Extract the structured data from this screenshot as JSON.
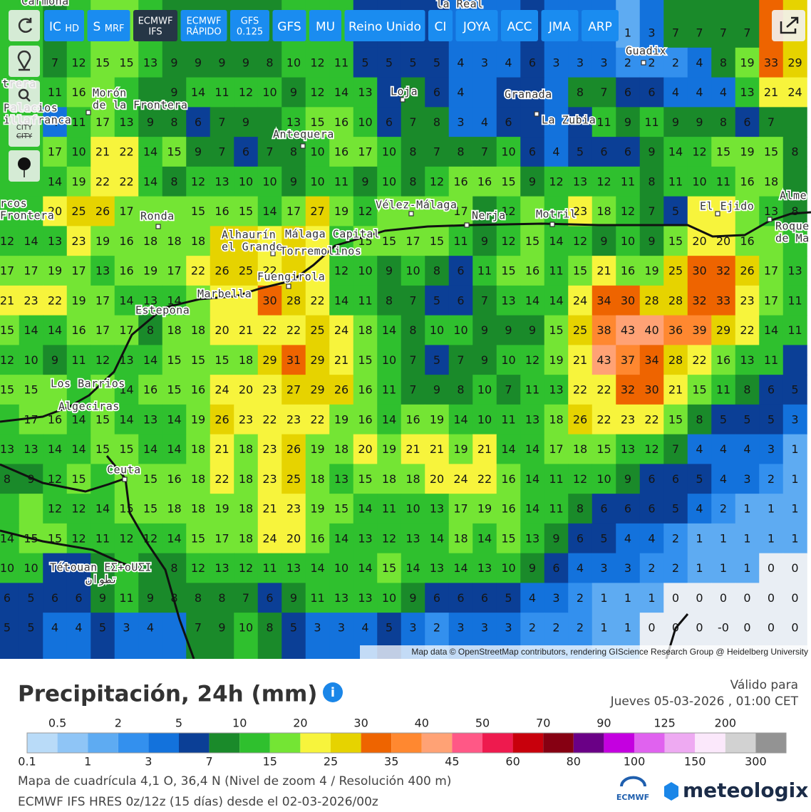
{
  "toolbar": {
    "buttons": [
      {
        "label": "IC",
        "sub": "HD"
      },
      {
        "label": "S",
        "sub": "MRF"
      },
      {
        "label": "ECMWF",
        "sub": "IFS",
        "stacked": true,
        "active": true
      },
      {
        "label": "ECMWF",
        "sub": "RÁPIDO",
        "stacked": true
      },
      {
        "label": "GFS",
        "sub": "0.125",
        "stacked": true
      },
      {
        "label": "GFS"
      },
      {
        "label": "MU"
      },
      {
        "label": "Reino Unido"
      },
      {
        "label": "CI"
      },
      {
        "label": "JOYA"
      },
      {
        "label": "ACC"
      },
      {
        "label": "JMA"
      },
      {
        "label": "ARP"
      }
    ],
    "city": "CITY"
  },
  "map": {
    "grid": {
      "rows": [
        [
          null,
          null,
          null,
          null,
          null,
          null,
          null,
          null,
          null,
          null,
          null,
          null,
          null,
          null,
          null,
          null,
          null,
          null,
          null,
          null,
          null,
          null,
          null,
          null,
          null,
          null,
          1,
          3,
          7,
          7,
          7,
          7,
          null,
          null
        ],
        [
          null,
          null,
          7,
          12,
          15,
          15,
          13,
          9,
          9,
          9,
          9,
          8,
          10,
          12,
          11,
          5,
          5,
          5,
          5,
          4,
          3,
          4,
          6,
          3,
          3,
          3,
          2,
          2,
          2,
          4,
          8,
          19,
          33,
          29
        ],
        [
          null,
          null,
          11,
          16,
          null,
          null,
          null,
          9,
          14,
          11,
          12,
          10,
          9,
          12,
          14,
          13,
          null,
          7,
          6,
          4,
          null,
          null,
          null,
          null,
          8,
          7,
          6,
          6,
          4,
          4,
          4,
          13,
          21,
          24
        ],
        [
          null,
          null,
          4,
          11,
          17,
          13,
          9,
          8,
          6,
          7,
          9,
          null,
          13,
          15,
          16,
          10,
          6,
          7,
          8,
          3,
          4,
          6,
          null,
          null,
          null,
          11,
          9,
          11,
          9,
          9,
          8,
          6,
          7,
          null
        ],
        [
          null,
          null,
          17,
          10,
          21,
          22,
          14,
          15,
          9,
          7,
          6,
          7,
          8,
          10,
          16,
          17,
          10,
          8,
          7,
          8,
          7,
          10,
          6,
          4,
          5,
          6,
          6,
          9,
          14,
          12,
          15,
          19,
          15,
          8
        ],
        [
          null,
          null,
          14,
          19,
          22,
          22,
          14,
          8,
          12,
          13,
          10,
          10,
          9,
          10,
          11,
          9,
          10,
          8,
          12,
          16,
          16,
          15,
          9,
          12,
          13,
          12,
          11,
          8,
          11,
          10,
          11,
          16,
          18,
          null
        ],
        [
          null,
          null,
          20,
          25,
          26,
          17,
          null,
          null,
          15,
          16,
          15,
          14,
          17,
          27,
          19,
          12,
          null,
          null,
          null,
          17,
          null,
          12,
          null,
          null,
          23,
          18,
          12,
          7,
          5,
          null,
          null,
          null,
          13,
          8
        ],
        [
          12,
          14,
          13,
          23,
          19,
          16,
          18,
          18,
          18,
          null,
          null,
          null,
          null,
          null,
          null,
          15,
          15,
          17,
          15,
          11,
          9,
          12,
          15,
          14,
          12,
          9,
          10,
          9,
          15,
          20,
          20,
          16,
          null,
          null
        ],
        [
          17,
          17,
          19,
          17,
          13,
          16,
          19,
          17,
          22,
          26,
          25,
          22,
          null,
          null,
          12,
          10,
          9,
          10,
          8,
          6,
          11,
          15,
          16,
          11,
          15,
          21,
          16,
          19,
          25,
          30,
          32,
          26,
          17,
          13
        ],
        [
          21,
          23,
          22,
          19,
          17,
          14,
          13,
          14,
          null,
          null,
          null,
          30,
          28,
          22,
          14,
          11,
          8,
          7,
          5,
          6,
          7,
          13,
          14,
          14,
          24,
          34,
          30,
          28,
          28,
          32,
          33,
          23,
          17,
          11
        ],
        [
          15,
          14,
          14,
          16,
          17,
          17,
          8,
          18,
          18,
          20,
          21,
          22,
          22,
          25,
          24,
          18,
          14,
          8,
          10,
          10,
          9,
          9,
          9,
          15,
          25,
          38,
          43,
          40,
          36,
          39,
          29,
          22,
          14,
          11
        ],
        [
          12,
          10,
          9,
          11,
          12,
          13,
          14,
          15,
          15,
          15,
          18,
          29,
          31,
          29,
          21,
          15,
          10,
          7,
          5,
          7,
          9,
          10,
          12,
          19,
          21,
          43,
          37,
          34,
          28,
          22,
          16,
          13,
          11,
          null
        ],
        [
          15,
          15,
          null,
          null,
          null,
          14,
          16,
          15,
          16,
          24,
          20,
          23,
          27,
          29,
          26,
          16,
          11,
          7,
          9,
          8,
          10,
          7,
          11,
          13,
          22,
          22,
          32,
          30,
          21,
          15,
          11,
          8,
          6,
          5
        ],
        [
          null,
          17,
          16,
          14,
          15,
          14,
          13,
          14,
          19,
          26,
          23,
          22,
          23,
          22,
          19,
          16,
          14,
          16,
          19,
          14,
          10,
          11,
          13,
          18,
          26,
          22,
          23,
          22,
          15,
          8,
          5,
          5,
          5,
          3
        ],
        [
          13,
          13,
          14,
          14,
          15,
          15,
          14,
          14,
          18,
          21,
          18,
          23,
          26,
          19,
          18,
          20,
          19,
          21,
          21,
          19,
          21,
          14,
          14,
          17,
          18,
          15,
          13,
          12,
          7,
          4,
          4,
          4,
          3,
          1
        ],
        [
          8,
          9,
          12,
          15,
          null,
          null,
          15,
          16,
          18,
          22,
          18,
          23,
          25,
          18,
          13,
          15,
          18,
          18,
          20,
          24,
          22,
          16,
          14,
          11,
          12,
          10,
          9,
          6,
          6,
          5,
          4,
          3,
          2,
          1
        ],
        [
          null,
          null,
          12,
          12,
          14,
          15,
          15,
          18,
          18,
          19,
          18,
          21,
          23,
          19,
          15,
          14,
          11,
          10,
          13,
          17,
          19,
          16,
          14,
          11,
          8,
          6,
          6,
          6,
          5,
          4,
          2,
          1,
          1,
          1
        ],
        [
          14,
          15,
          15,
          12,
          11,
          12,
          12,
          14,
          15,
          17,
          18,
          24,
          20,
          16,
          14,
          13,
          12,
          13,
          14,
          18,
          14,
          15,
          13,
          9,
          6,
          5,
          4,
          4,
          2,
          1,
          1,
          1,
          1,
          1
        ],
        [
          10,
          10,
          null,
          null,
          null,
          null,
          null,
          8,
          12,
          13,
          12,
          11,
          13,
          14,
          10,
          14,
          15,
          14,
          13,
          14,
          13,
          10,
          9,
          6,
          4,
          3,
          3,
          2,
          2,
          1,
          1,
          1,
          0,
          0
        ],
        [
          6,
          5,
          6,
          6,
          9,
          11,
          9,
          8,
          8,
          8,
          7,
          6,
          9,
          11,
          13,
          13,
          10,
          9,
          6,
          6,
          6,
          5,
          4,
          3,
          2,
          1,
          1,
          1,
          0,
          0,
          0,
          0,
          0,
          0
        ],
        [
          5,
          5,
          4,
          4,
          5,
          3,
          4,
          null,
          7,
          9,
          10,
          8,
          5,
          3,
          3,
          4,
          5,
          3,
          2,
          3,
          3,
          3,
          2,
          2,
          2,
          1,
          1,
          0,
          0,
          0,
          "-0",
          0,
          0,
          0
        ]
      ]
    },
    "places": [
      {
        "lines": [
          "Carmona"
        ]
      },
      {
        "lines": [
          "la Real"
        ]
      },
      {
        "lines": [
          "Guadix"
        ]
      },
      {
        "lines": [
          "trera"
        ]
      },
      {
        "lines": [
          "Morón",
          "de la Frontera"
        ]
      },
      {
        "lines": [
          "Loja"
        ]
      },
      {
        "lines": [
          "Granada"
        ]
      },
      {
        "lines": [
          "Palacios",
          "illafranca"
        ]
      },
      {
        "lines": [
          "Antequera"
        ]
      },
      {
        "lines": [
          "La Zubia"
        ]
      },
      {
        "lines": [
          "rcos",
          "Frontera"
        ]
      },
      {
        "lines": [
          "Ronda"
        ]
      },
      {
        "lines": [
          "Vélez-Málaga"
        ]
      },
      {
        "lines": [
          "Nerja"
        ]
      },
      {
        "lines": [
          "Motril"
        ]
      },
      {
        "lines": [
          "El Ejido"
        ]
      },
      {
        "lines": [
          "Alme"
        ]
      },
      {
        "lines": [
          "Roque",
          "de Mar"
        ]
      },
      {
        "lines": [
          "Alhaurín",
          "el Grande"
        ]
      },
      {
        "lines": [
          "Málaga Capital"
        ]
      },
      {
        "lines": [
          "Torremolinos"
        ]
      },
      {
        "lines": [
          "Fuengirola"
        ]
      },
      {
        "lines": [
          "Marbella"
        ]
      },
      {
        "lines": [
          "Estepona"
        ]
      },
      {
        "lines": [
          "Los Barrios"
        ]
      },
      {
        "lines": [
          "Algeciras"
        ]
      },
      {
        "lines": [
          "Ceuta"
        ]
      },
      {
        "lines": [
          "Tétouan ΕΣ+οUΣI",
          "تطوان"
        ]
      }
    ],
    "attribution": "Map data © OpenStreetMap contributors, rendering GIScience Research Group @ Heidelberg University"
  },
  "legend": {
    "title": "Precipitación, 24h (mm)",
    "ticks": [
      0.1,
      0.5,
      1,
      2,
      3,
      5,
      7,
      10,
      15,
      20,
      25,
      30,
      35,
      40,
      45,
      50,
      60,
      70,
      80,
      90,
      100,
      125,
      150,
      200,
      300
    ],
    "colors": [
      "#b9dbf8",
      "#8fc5f6",
      "#5eabf2",
      "#3390ee",
      "#1372dc",
      "#0b3f96",
      "#1a8a2a",
      "#2fc02e",
      "#74e534",
      "#f7f43c",
      "#e6d300",
      "#ee6400",
      "#ff8830",
      "#ffa275",
      "#ff5886",
      "#ee1a4e",
      "#c8000c",
      "#860012",
      "#6a0086",
      "#c400e0",
      "#e062ef",
      "#eeaaf2",
      "#fbe8fb",
      "#d2d2d2",
      "#939393"
    ],
    "below_color": "#e9eef4"
  },
  "footer": {
    "valid_label": "Válido para",
    "valid_time": "Jueves 05-03-2026 , 01:00 CET",
    "grid_info": "Mapa de cuadrícula 4,1 O, 36,4 N (Nivel de zoom 4 / Resolución 400 m)",
    "model_info": "ECMWF IFS HRES 0z/12z (15 días) desde el 02-03-2026/00z",
    "logo_ecmwf": "ECMWF",
    "logo_brand": "meteologix"
  }
}
